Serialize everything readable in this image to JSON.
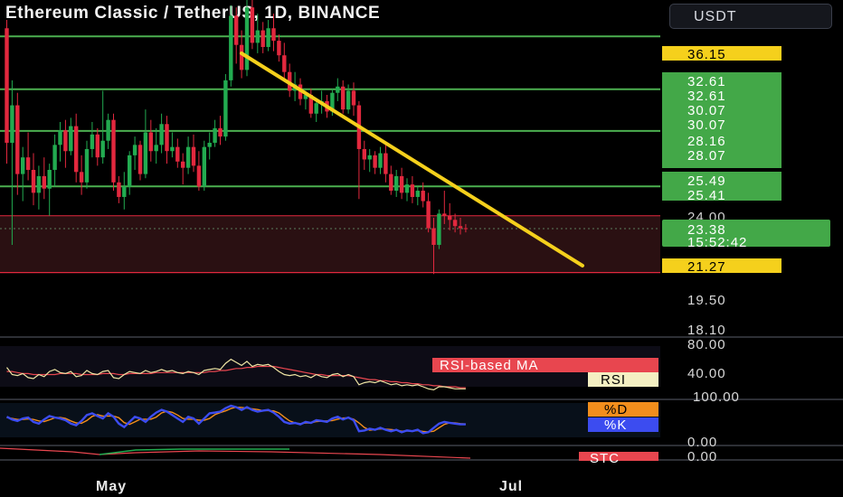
{
  "title": "Ethereum Classic / TetherUS, 1D, BINANCE",
  "currency_button": "USDT",
  "colors": {
    "up": "#22ab50",
    "down": "#e2283e",
    "line": "#4caf50",
    "trend": "#f5d01c",
    "label_green": "#43a848",
    "label_yellow": "#f5d01c",
    "rsi": "#efe5a4",
    "rsi_ma": "#e8464f",
    "stoch_k": "#3c4cf0",
    "stoch_d": "#f28e1c"
  },
  "chart_data": [
    {
      "type": "candlestick",
      "symbol": "Ethereum Classic / TetherUS",
      "interval": "1D",
      "exchange": "BINANCE",
      "ylim": [
        18.1,
        36.15
      ],
      "xticks": [
        "May",
        "Jul"
      ],
      "price_tags": {
        "sell_zone_top": "36.15",
        "levels": [
          "32.61",
          "32.61",
          "30.07",
          "30.07",
          "28.16",
          "28.07",
          "25.49",
          "25.41"
        ],
        "level_values": [
          32.61,
          30.07,
          28.07,
          25.41
        ],
        "range_top": "24.00",
        "last_price": "23.38",
        "countdown": "15:52:42",
        "support": "21.27",
        "axis_low1": "19.50",
        "axis_low2": "18.10"
      },
      "support_zone": [
        21.27,
        24.0
      ],
      "trendline": {
        "from_close_index": 42,
        "from_price": 35.0,
        "to_index": 100,
        "to_price": 21.3
      },
      "candles": [
        [
          33.0,
          33.4,
          26.5,
          27.5
        ],
        [
          27.5,
          30.5,
          22.6,
          29.3
        ],
        [
          29.3,
          29.9,
          25.0,
          26.0
        ],
        [
          26.0,
          27.3,
          24.7,
          26.8
        ],
        [
          26.8,
          28.0,
          25.7,
          26.2
        ],
        [
          26.2,
          27.0,
          24.5,
          25.1
        ],
        [
          25.1,
          26.4,
          24.3,
          25.9
        ],
        [
          25.9,
          26.8,
          24.8,
          25.3
        ],
        [
          25.3,
          26.5,
          24.0,
          26.2
        ],
        [
          26.2,
          27.9,
          25.4,
          27.4
        ],
        [
          27.4,
          28.5,
          26.6,
          28.1
        ],
        [
          28.1,
          28.6,
          26.3,
          27.1
        ],
        [
          27.1,
          28.7,
          26.9,
          28.3
        ],
        [
          28.3,
          28.9,
          25.6,
          26.1
        ],
        [
          26.1,
          26.9,
          25.0,
          25.6
        ],
        [
          25.6,
          27.6,
          25.3,
          27.2
        ],
        [
          27.2,
          28.5,
          26.8,
          27.9
        ],
        [
          27.9,
          28.2,
          26.4,
          26.8
        ],
        [
          26.8,
          30.0,
          26.5,
          27.6
        ],
        [
          27.6,
          28.9,
          27.2,
          28.6
        ],
        [
          28.6,
          28.9,
          25.2,
          25.6
        ],
        [
          25.6,
          25.9,
          24.6,
          24.9
        ],
        [
          24.9,
          26.1,
          24.3,
          25.4
        ],
        [
          25.4,
          27.1,
          25.0,
          26.9
        ],
        [
          26.9,
          27.8,
          26.2,
          27.4
        ],
        [
          27.4,
          27.6,
          25.7,
          26.0
        ],
        [
          26.0,
          29.1,
          25.8,
          28.0
        ],
        [
          28.0,
          28.6,
          26.6,
          27.1
        ],
        [
          27.1,
          28.2,
          26.5,
          27.4
        ],
        [
          27.4,
          28.9,
          27.0,
          28.4
        ],
        [
          28.4,
          28.8,
          26.5,
          27.1
        ],
        [
          27.1,
          28.0,
          26.8,
          27.3
        ],
        [
          27.3,
          27.7,
          26.3,
          26.6
        ],
        [
          26.6,
          27.0,
          25.5,
          26.3
        ],
        [
          26.3,
          27.8,
          26.0,
          27.3
        ],
        [
          27.3,
          27.9,
          26.1,
          26.4
        ],
        [
          26.4,
          27.1,
          25.2,
          25.4
        ],
        [
          25.4,
          27.6,
          25.2,
          27.3
        ],
        [
          27.3,
          28.0,
          26.7,
          27.5
        ],
        [
          27.5,
          28.6,
          27.3,
          28.2
        ],
        [
          28.2,
          28.8,
          27.4,
          27.8
        ],
        [
          27.8,
          30.8,
          27.6,
          30.5
        ],
        [
          30.5,
          34.1,
          30.2,
          33.6
        ],
        [
          33.6,
          34.0,
          31.3,
          32.2
        ],
        [
          32.2,
          32.9,
          30.6,
          31.0
        ],
        [
          31.0,
          34.8,
          30.7,
          34.0
        ],
        [
          34.0,
          34.5,
          32.0,
          32.3
        ],
        [
          32.3,
          33.7,
          31.8,
          32.9
        ],
        [
          32.9,
          33.3,
          31.8,
          32.1
        ],
        [
          32.1,
          33.4,
          31.9,
          33.0
        ],
        [
          33.0,
          33.7,
          31.9,
          32.4
        ],
        [
          32.4,
          32.7,
          31.4,
          31.7
        ],
        [
          31.7,
          32.3,
          30.6,
          30.9
        ],
        [
          30.9,
          31.3,
          29.7,
          30.0
        ],
        [
          30.0,
          30.9,
          29.5,
          30.3
        ],
        [
          30.3,
          30.6,
          29.3,
          29.6
        ],
        [
          29.6,
          30.0,
          29.1,
          29.8
        ],
        [
          29.8,
          30.1,
          28.7,
          28.9
        ],
        [
          28.9,
          29.6,
          28.5,
          29.4
        ],
        [
          29.4,
          30.0,
          28.9,
          29.5
        ],
        [
          29.5,
          29.8,
          28.7,
          29.0
        ],
        [
          29.0,
          30.1,
          28.8,
          29.9
        ],
        [
          29.9,
          30.6,
          29.5,
          30.2
        ],
        [
          30.2,
          30.5,
          28.9,
          29.1
        ],
        [
          29.1,
          30.3,
          28.9,
          30.0
        ],
        [
          30.0,
          30.4,
          28.8,
          29.3
        ],
        [
          29.3,
          29.5,
          24.8,
          27.2
        ],
        [
          27.2,
          27.6,
          26.2,
          26.7
        ],
        [
          26.7,
          27.2,
          26.1,
          26.9
        ],
        [
          26.9,
          27.1,
          26.0,
          26.3
        ],
        [
          26.3,
          27.3,
          26.0,
          27.0
        ],
        [
          27.0,
          27.4,
          25.6,
          26.0
        ],
        [
          26.0,
          26.4,
          25.0,
          25.2
        ],
        [
          25.2,
          26.2,
          24.9,
          25.9
        ],
        [
          25.9,
          26.3,
          24.8,
          25.1
        ],
        [
          25.1,
          25.8,
          24.7,
          25.5
        ],
        [
          25.5,
          25.9,
          24.6,
          24.9
        ],
        [
          24.9,
          25.4,
          24.5,
          25.2
        ],
        [
          25.2,
          25.6,
          24.4,
          24.7
        ],
        [
          24.7,
          25.1,
          23.2,
          23.4
        ],
        [
          23.4,
          23.9,
          21.2,
          22.6
        ],
        [
          22.6,
          24.3,
          22.4,
          24.1
        ],
        [
          24.1,
          25.2,
          23.6,
          24.0
        ],
        [
          24.0,
          24.6,
          23.3,
          23.8
        ],
        [
          23.8,
          24.1,
          23.2,
          23.5
        ],
        [
          23.5,
          23.9,
          23.1,
          23.4
        ],
        [
          23.4,
          23.6,
          23.2,
          23.38
        ]
      ]
    },
    {
      "type": "line",
      "indicator": "RSI",
      "ylim": [
        30,
        80
      ],
      "yticks": [
        "80.00",
        "40.00"
      ],
      "legend": [
        "RSI-based MA",
        "RSI"
      ],
      "series": [
        {
          "name": "RSI",
          "values": [
            59,
            52,
            51,
            53,
            49,
            48,
            52,
            50,
            55,
            57,
            54,
            53,
            55,
            50,
            51,
            56,
            53,
            52,
            55,
            56,
            49,
            48,
            52,
            55,
            54,
            53,
            56,
            54,
            55,
            57,
            55,
            56,
            54,
            53,
            55,
            54,
            52,
            56,
            57,
            58,
            57,
            63,
            67,
            64,
            61,
            65,
            60,
            62,
            61,
            62,
            59,
            55,
            52,
            51,
            52,
            50,
            51,
            49,
            52,
            50,
            49,
            52,
            53,
            50,
            52,
            50,
            42,
            44,
            45,
            44,
            46,
            44,
            42,
            43,
            41,
            42,
            41,
            42,
            40,
            38,
            37,
            40,
            40,
            39,
            38,
            38,
            38
          ]
        },
        {
          "name": "RSI-based MA",
          "values": [
            55,
            55,
            54,
            53,
            53,
            52,
            52,
            52,
            52,
            52,
            53,
            53,
            53,
            53,
            52,
            52,
            52,
            52,
            53,
            53,
            53,
            52,
            52,
            53,
            53,
            53,
            53,
            53,
            54,
            54,
            54,
            54,
            54,
            54,
            54,
            54,
            54,
            54,
            55,
            55,
            56,
            56,
            57,
            58,
            58,
            59,
            59,
            60,
            60,
            60,
            60,
            59,
            58,
            57,
            56,
            55,
            54,
            53,
            52,
            52,
            51,
            51,
            51,
            51,
            51,
            50,
            49,
            48,
            47,
            47,
            46,
            46,
            45,
            45,
            44,
            44,
            43,
            43,
            42,
            42,
            41,
            41,
            40,
            40,
            40,
            39,
            39
          ]
        }
      ]
    },
    {
      "type": "line",
      "indicator": "Stochastic",
      "ylim": [
        0,
        100
      ],
      "yticks": [
        "100.00",
        "0.00"
      ],
      "legend": [
        "%D",
        "%K"
      ],
      "series": [
        {
          "name": "%K",
          "values": [
            60,
            52,
            48,
            55,
            58,
            45,
            40,
            52,
            62,
            58,
            55,
            50,
            40,
            35,
            48,
            65,
            70,
            62,
            55,
            70,
            60,
            40,
            30,
            45,
            60,
            55,
            45,
            60,
            72,
            80,
            75,
            65,
            55,
            45,
            60,
            55,
            40,
            55,
            70,
            72,
            75,
            85,
            92,
            88,
            80,
            88,
            80,
            75,
            78,
            80,
            72,
            60,
            45,
            40,
            42,
            38,
            45,
            42,
            50,
            48,
            45,
            55,
            60,
            52,
            58,
            50,
            18,
            20,
            25,
            22,
            28,
            22,
            18,
            22,
            15,
            20,
            18,
            22,
            12,
            15,
            28,
            40,
            45,
            42,
            40,
            38,
            38
          ]
        },
        {
          "name": "%D",
          "values": [
            58,
            55,
            52,
            52,
            54,
            52,
            48,
            46,
            51,
            57,
            58,
            55,
            48,
            42,
            41,
            49,
            61,
            66,
            62,
            62,
            62,
            57,
            43,
            38,
            45,
            53,
            53,
            53,
            59,
            71,
            76,
            73,
            65,
            55,
            53,
            53,
            50,
            50,
            55,
            66,
            72,
            77,
            84,
            88,
            87,
            85,
            83,
            81,
            78,
            78,
            77,
            71,
            59,
            48,
            42,
            40,
            42,
            42,
            46,
            47,
            48,
            49,
            53,
            56,
            57,
            53,
            42,
            29,
            21,
            22,
            25,
            24,
            23,
            21,
            18,
            19,
            18,
            20,
            17,
            16,
            18,
            28,
            38,
            42,
            42,
            40,
            39
          ]
        }
      ]
    },
    {
      "type": "line",
      "indicator": "STC",
      "yticks": [
        "0.00"
      ],
      "legend": [
        "STC"
      ]
    }
  ],
  "xaxis": {
    "labels": [
      "May",
      "Jul"
    ]
  }
}
